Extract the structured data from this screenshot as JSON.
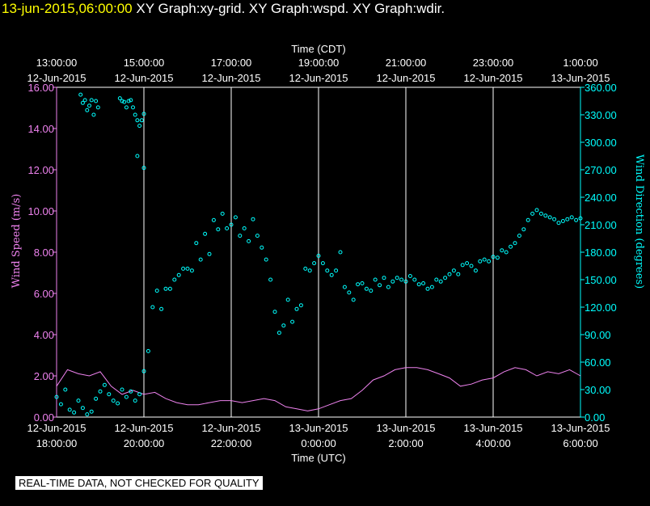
{
  "header": {
    "timestamp": "13-jun-2015,06:00:00",
    "graphs": "XY Graph:xy-grid.  XY Graph:wspd.  XY Graph:wdir."
  },
  "disclaimer": "REAL-TIME DATA, NOT CHECKED FOR QUALITY",
  "colors": {
    "background": "#000000",
    "wspd": "#ee82ee",
    "wdir": "#00ffff",
    "grid": "#ffffff"
  },
  "chart_data": {
    "type": "scatter",
    "top_axis_label": "Time (CDT)",
    "bottom_axis_label": "Time (UTC)",
    "y_left_label": "Wind Speed (m/s)",
    "y_right_label": "Wind Direction (degrees)",
    "x_range_hours_utc": [
      18,
      30
    ],
    "y_left_range": [
      0,
      16
    ],
    "y_right_range": [
      0,
      360
    ],
    "grid": true,
    "top_ticks": [
      {
        "h": 18,
        "time": "13:00:00",
        "date": "12-Jun-2015"
      },
      {
        "h": 20,
        "time": "15:00:00",
        "date": "12-Jun-2015"
      },
      {
        "h": 22,
        "time": "17:00:00",
        "date": "12-Jun-2015"
      },
      {
        "h": 24,
        "time": "19:00:00",
        "date": "12-Jun-2015"
      },
      {
        "h": 26,
        "time": "21:00:00",
        "date": "12-Jun-2015"
      },
      {
        "h": 28,
        "time": "23:00:00",
        "date": "12-Jun-2015"
      },
      {
        "h": 30,
        "time": "1:00:00",
        "date": "13-Jun-2015"
      }
    ],
    "bottom_ticks": [
      {
        "h": 18,
        "date": "12-Jun-2015",
        "time": "18:00:00"
      },
      {
        "h": 20,
        "date": "12-Jun-2015",
        "time": "20:00:00"
      },
      {
        "h": 22,
        "date": "12-Jun-2015",
        "time": "22:00:00"
      },
      {
        "h": 24,
        "date": "13-Jun-2015",
        "time": "0:00:00"
      },
      {
        "h": 26,
        "date": "13-Jun-2015",
        "time": "2:00:00"
      },
      {
        "h": 28,
        "date": "13-Jun-2015",
        "time": "4:00:00"
      },
      {
        "h": 30,
        "date": "13-Jun-2015",
        "time": "6:00:00"
      }
    ],
    "y_left_ticks": [
      "0.00",
      "2.00",
      "4.00",
      "6.00",
      "8.00",
      "10.00",
      "12.00",
      "14.00",
      "16.00"
    ],
    "y_right_ticks": [
      "0.00",
      "30.00",
      "60.00",
      "90.00",
      "120.00",
      "150.00",
      "180.00",
      "210.00",
      "240.00",
      "270.00",
      "300.00",
      "330.00",
      "360.00"
    ],
    "series": [
      {
        "name": "wspd",
        "axis": "left",
        "style": "line",
        "x": [
          18.0,
          18.25,
          18.5,
          18.75,
          19.0,
          19.25,
          19.5,
          19.75,
          20.0,
          20.25,
          20.5,
          20.75,
          21.0,
          21.25,
          21.5,
          21.75,
          22.0,
          22.25,
          22.5,
          22.75,
          23.0,
          23.25,
          23.5,
          23.75,
          24.0,
          24.25,
          24.5,
          24.75,
          25.0,
          25.25,
          25.5,
          25.75,
          26.0,
          26.25,
          26.5,
          26.75,
          27.0,
          27.25,
          27.5,
          27.75,
          28.0,
          28.25,
          28.5,
          28.75,
          29.0,
          29.25,
          29.5,
          29.75,
          30.0
        ],
        "y": [
          1.5,
          2.3,
          2.1,
          2.0,
          2.2,
          1.5,
          1.1,
          1.3,
          1.1,
          1.2,
          0.9,
          0.7,
          0.6,
          0.6,
          0.7,
          0.8,
          0.8,
          0.7,
          0.8,
          0.9,
          0.8,
          0.5,
          0.4,
          0.3,
          0.4,
          0.6,
          0.8,
          0.9,
          1.3,
          1.8,
          2.0,
          2.3,
          2.4,
          2.4,
          2.3,
          2.1,
          1.9,
          1.5,
          1.6,
          1.8,
          1.9,
          2.2,
          2.4,
          2.3,
          2.0,
          2.2,
          2.1,
          2.3,
          2.0
        ]
      },
      {
        "name": "wdir",
        "axis": "right",
        "style": "circles",
        "x": [
          18.0,
          18.1,
          18.2,
          18.3,
          18.4,
          18.5,
          18.6,
          18.7,
          18.8,
          18.9,
          19.0,
          19.1,
          19.2,
          19.3,
          19.4,
          19.5,
          19.6,
          19.7,
          19.8,
          19.9,
          20.0,
          20.1,
          20.2,
          20.3,
          20.4,
          20.5,
          20.6,
          20.7,
          20.8,
          20.9,
          21.0,
          21.1,
          21.2,
          21.3,
          21.4,
          21.5,
          21.6,
          21.7,
          21.8,
          21.9,
          22.0,
          22.1,
          22.2,
          22.3,
          22.4,
          22.5,
          22.6,
          22.7,
          22.8,
          22.9,
          23.0,
          23.1,
          23.2,
          23.3,
          23.4,
          23.5,
          23.6,
          23.7,
          23.8,
          23.9,
          24.0,
          24.1,
          24.2,
          24.3,
          24.4,
          24.5,
          24.6,
          24.7,
          24.8,
          24.9,
          25.0,
          25.1,
          25.2,
          25.3,
          25.4,
          25.5,
          25.6,
          25.7,
          25.8,
          25.9,
          26.0,
          26.1,
          26.2,
          26.3,
          26.4,
          26.5,
          26.6,
          26.7,
          26.8,
          26.9,
          27.0,
          27.1,
          27.2,
          27.3,
          27.4,
          27.5,
          27.6,
          27.7,
          27.8,
          27.9,
          28.0,
          28.1,
          28.2,
          28.3,
          28.4,
          28.5,
          28.6,
          28.7,
          28.8,
          28.9,
          29.0,
          29.1,
          29.2,
          29.3,
          29.4,
          29.5,
          29.6,
          29.7,
          29.8,
          29.9,
          30.0
        ],
        "y": [
          22,
          14,
          30,
          8,
          5,
          18,
          10,
          3,
          6,
          20,
          28,
          35,
          25,
          18,
          15,
          30,
          22,
          28,
          18,
          25,
          50,
          72,
          120,
          138,
          118,
          140,
          140,
          150,
          155,
          162,
          162,
          160,
          190,
          172,
          200,
          178,
          215,
          205,
          222,
          206,
          210,
          218,
          198,
          206,
          192,
          216,
          198,
          185,
          172,
          150,
          115,
          92,
          100,
          128,
          104,
          118,
          122,
          162,
          160,
          168,
          176,
          168,
          160,
          155,
          160,
          180,
          142,
          136,
          128,
          145,
          146,
          140,
          138,
          150,
          144,
          152,
          142,
          148,
          152,
          150,
          148,
          154,
          150,
          145,
          146,
          140,
          142,
          150,
          148,
          152,
          156,
          160,
          156,
          166,
          168,
          165,
          160,
          170,
          172,
          170,
          175,
          174,
          182,
          180,
          186,
          190,
          198,
          205,
          215,
          222,
          226,
          222,
          220,
          218,
          216,
          212,
          214,
          216,
          218,
          215,
          217
        ]
      },
      {
        "name": "wdir-early",
        "axis": "right",
        "style": "circles",
        "x": [
          18.55,
          18.6,
          18.65,
          18.7,
          18.75,
          18.8,
          18.85,
          18.9,
          18.95,
          19.45,
          19.5,
          19.55,
          19.6,
          19.65,
          19.7,
          19.75,
          19.8,
          19.85,
          19.9,
          19.95,
          20.0,
          19.85,
          20.0
        ],
        "y": [
          352,
          343,
          346,
          335,
          340,
          346,
          330,
          345,
          338,
          348,
          345,
          344,
          338,
          345,
          346,
          338,
          330,
          324,
          318,
          324,
          331,
          285,
          272
        ]
      }
    ]
  }
}
